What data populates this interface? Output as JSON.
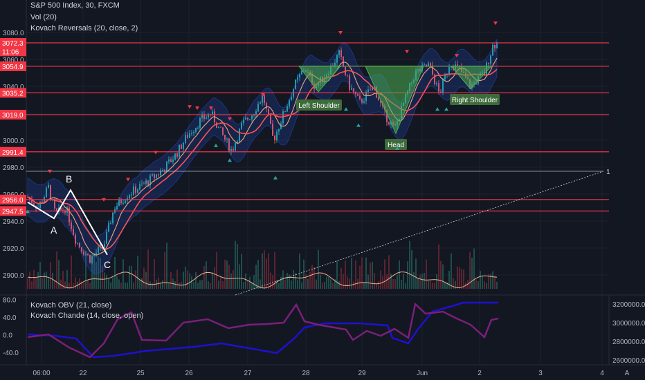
{
  "legend": {
    "symbol": "S&P 500 Index, 30, FXCM",
    "vol": "Vol (20)",
    "kovach_reversals": "Kovach Reversals (20, close, 2)",
    "kovach_obv": "Kovach OBV (21, close)",
    "kovach_chande": "Kovach Chande (14, close, open)"
  },
  "price_axis": {
    "ticks": [
      "3080.0",
      "3060.0",
      "3040.0",
      "3020.0",
      "3000.0",
      "2980.0",
      "2960.0",
      "2940.0",
      "2920.0",
      "2900.0"
    ]
  },
  "price_badges": [
    {
      "text": "3072.3",
      "value": 3072.3
    },
    {
      "text": "11:06",
      "value": 3066.0
    },
    {
      "text": "3054.9",
      "value": 3054.9
    },
    {
      "text": "3035.2",
      "value": 3035.2
    },
    {
      "text": "3019.0",
      "value": 3019.0
    },
    {
      "text": "2991.4",
      "value": 2991.4
    },
    {
      "text": "2956.0",
      "value": 2956.0
    },
    {
      "text": "2947.5",
      "value": 2947.5
    }
  ],
  "horizontal_levels": [
    3072.3,
    3054.9,
    3035.2,
    3019.0,
    2991.4,
    2956.0,
    2947.5
  ],
  "ray_label": "1",
  "annotations": {
    "pattern_a": "A",
    "pattern_b": "B",
    "pattern_c": "C",
    "left_shoulder": "Left Shoulder",
    "head": "Head",
    "right_shoulder": "Right Shoulder"
  },
  "oscillator_axis": {
    "left_ticks": [
      "80.0",
      "40.0",
      "0.0",
      "-40.0"
    ],
    "right_ticks": [
      "3200000.0",
      "3000000.0",
      "2800000.0",
      "2600000.0"
    ]
  },
  "time_axis": {
    "ticks": [
      "06:00",
      "22",
      "25",
      "26",
      "27",
      "28",
      "29",
      "Jun",
      "2",
      "3",
      "4"
    ]
  },
  "corner_label": "A",
  "colors": {
    "up": "#26a69a",
    "down": "#ef5350",
    "level": "#f23645",
    "obv": "#2010d0",
    "chande": "#7b1f7a",
    "bband": "#2962ff",
    "ma": "#ff5252"
  }
}
